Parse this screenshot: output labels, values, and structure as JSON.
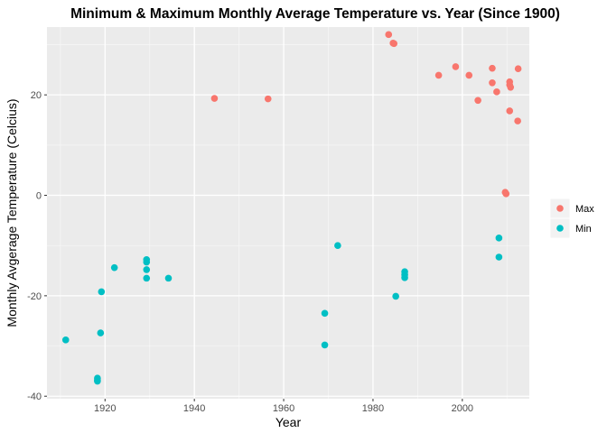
{
  "chart_data": {
    "type": "scatter",
    "title": "Minimum & Maximum Monthly Average Temperature vs. Year (Since 1900)",
    "xlabel": "Year",
    "ylabel": "Monthly Avgerage Temperature (Celcius)",
    "xlim": [
      1907,
      2015
    ],
    "ylim": [
      -40.5,
      33.5
    ],
    "x_ticks": [
      1920,
      1940,
      1960,
      1980,
      2000
    ],
    "y_ticks": [
      -40,
      -20,
      0,
      20
    ],
    "grid": true,
    "legend_position": "right",
    "series": [
      {
        "name": "Max",
        "color": "#F8766D",
        "points": [
          [
            1944.5,
            19.3
          ],
          [
            1956.5,
            19.2
          ],
          [
            1983.5,
            32.0
          ],
          [
            1984.5,
            30.3
          ],
          [
            1984.7,
            30.2
          ],
          [
            1994.7,
            23.9
          ],
          [
            1998.5,
            25.6
          ],
          [
            2001.5,
            23.9
          ],
          [
            2003.5,
            18.9
          ],
          [
            2006.7,
            25.3
          ],
          [
            2006.7,
            22.4
          ],
          [
            2007.7,
            20.6
          ],
          [
            2009.6,
            0.6
          ],
          [
            2009.8,
            0.3
          ],
          [
            2010.6,
            22.6
          ],
          [
            2010.6,
            22.0
          ],
          [
            2010.8,
            21.5
          ],
          [
            2010.6,
            16.8
          ],
          [
            2012.5,
            25.2
          ],
          [
            2012.4,
            14.8
          ]
        ]
      },
      {
        "name": "Min",
        "color": "#00BFC4",
        "points": [
          [
            1911.2,
            -28.8
          ],
          [
            1918.3,
            -36.4
          ],
          [
            1918.3,
            -36.8
          ],
          [
            1918.3,
            -37.0
          ],
          [
            1919.2,
            -19.2
          ],
          [
            1919.0,
            -27.4
          ],
          [
            1922.1,
            -14.4
          ],
          [
            1929.3,
            -12.8
          ],
          [
            1929.3,
            -13.3
          ],
          [
            1929.3,
            -14.8
          ],
          [
            1929.3,
            -16.5
          ],
          [
            1934.2,
            -16.5
          ],
          [
            1969.2,
            -23.5
          ],
          [
            1969.2,
            -29.8
          ],
          [
            1972.1,
            -10.0
          ],
          [
            1985.1,
            -20.1
          ],
          [
            1987.1,
            -15.2
          ],
          [
            1987.1,
            -15.8
          ],
          [
            1987.1,
            -16.4
          ],
          [
            2008.2,
            -8.5
          ],
          [
            2008.2,
            -12.3
          ]
        ]
      }
    ]
  }
}
